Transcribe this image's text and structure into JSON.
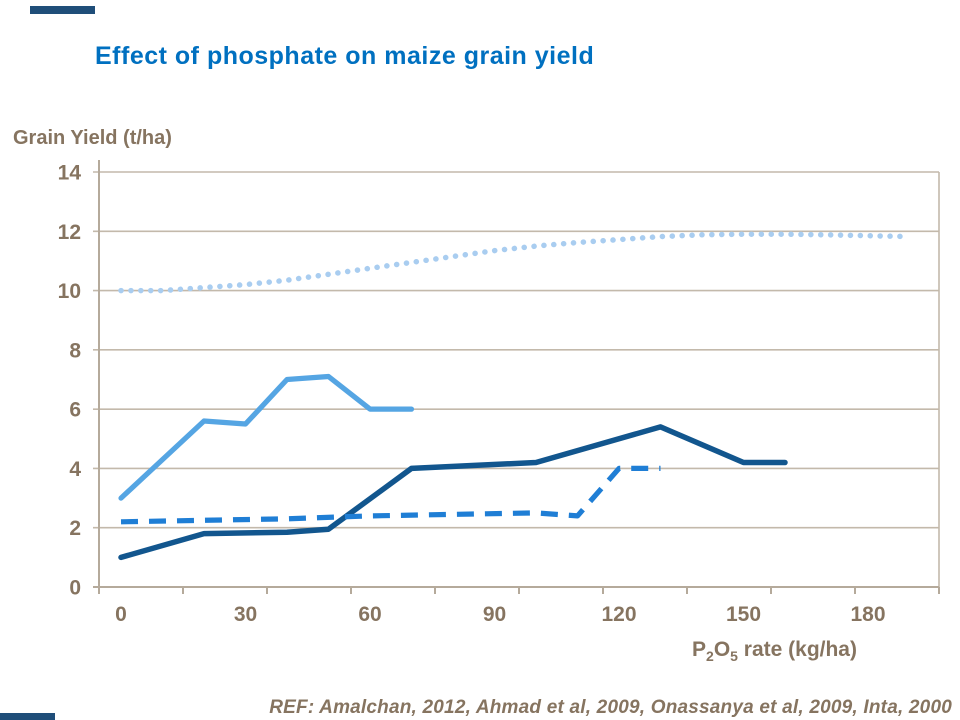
{
  "page": {
    "title": "Effect of phosphate on maize grain yield",
    "ref_note": "REF: Amalchan, 2012, Ahmad et al, 2009, Onassanya et al, 2009, Inta, 2000"
  },
  "colors": {
    "title_blue": "#0070C0",
    "axis_text_brown": "#867460",
    "gridline": "#C3B9AB",
    "axis_line": "#B5AA9B",
    "accent_bar_navy": "#1F4E79",
    "series_dotted_pale_blue": "#A9CDF0",
    "series_light_blue": "#55A5E3",
    "series_dark_blue": "#12568E",
    "series_dashed_blue": "#1F7ED5"
  },
  "x_axis_label_parts": {
    "p": "P",
    "sub2": "2",
    "o": "O",
    "sub5": "5",
    "rest": " rate (kg/ha)"
  },
  "chart_data": {
    "type": "line",
    "title": "Effect of phosphate on maize grain yield",
    "xlabel": "P2O5 rate (kg/ha)",
    "ylabel": "Grain Yield (t/ha)",
    "xlim": [
      0,
      200
    ],
    "ylim": [
      0,
      14
    ],
    "x_tick_labels": [
      0,
      30,
      60,
      90,
      120,
      150,
      180
    ],
    "y_tick_labels": [
      0,
      2,
      4,
      6,
      8,
      10,
      12,
      14
    ],
    "grid": "horizontal",
    "legend": "none",
    "series": [
      {
        "id": "dotted-pale-blue-trend",
        "style": "dotted",
        "color": "#A9CDF0",
        "width": 5.5,
        "points": [
          [
            0,
            10.0
          ],
          [
            10,
            10.0
          ],
          [
            20,
            10.1
          ],
          [
            30,
            10.2
          ],
          [
            40,
            10.35
          ],
          [
            50,
            10.55
          ],
          [
            60,
            10.75
          ],
          [
            70,
            10.95
          ],
          [
            80,
            11.15
          ],
          [
            90,
            11.35
          ],
          [
            100,
            11.5
          ],
          [
            110,
            11.62
          ],
          [
            120,
            11.72
          ],
          [
            130,
            11.82
          ],
          [
            140,
            11.88
          ],
          [
            150,
            11.9
          ],
          [
            160,
            11.9
          ],
          [
            170,
            11.88
          ],
          [
            180,
            11.85
          ],
          [
            190,
            11.82
          ]
        ]
      },
      {
        "id": "light-blue-solid",
        "style": "solid",
        "color": "#55A5E3",
        "width": 5.2,
        "points": [
          [
            0,
            3.0
          ],
          [
            20,
            5.6
          ],
          [
            30,
            5.5
          ],
          [
            40,
            7.0
          ],
          [
            50,
            7.1
          ],
          [
            60,
            6.0
          ],
          [
            70,
            6.0
          ]
        ]
      },
      {
        "id": "dark-blue-solid",
        "style": "solid",
        "color": "#12568E",
        "width": 5.5,
        "points": [
          [
            0,
            1.0
          ],
          [
            20,
            1.8
          ],
          [
            40,
            1.85
          ],
          [
            50,
            1.95
          ],
          [
            70,
            4.0
          ],
          [
            100,
            4.2
          ],
          [
            130,
            5.4
          ],
          [
            150,
            4.2
          ],
          [
            160,
            4.2
          ]
        ]
      },
      {
        "id": "medium-blue-dashed",
        "style": "dashed",
        "color": "#1F7ED5",
        "width": 5.2,
        "points": [
          [
            0,
            2.2
          ],
          [
            20,
            2.25
          ],
          [
            40,
            2.3
          ],
          [
            60,
            2.4
          ],
          [
            80,
            2.45
          ],
          [
            100,
            2.5
          ],
          [
            110,
            2.4
          ],
          [
            120,
            4.0
          ],
          [
            130,
            4.0
          ]
        ]
      }
    ]
  }
}
